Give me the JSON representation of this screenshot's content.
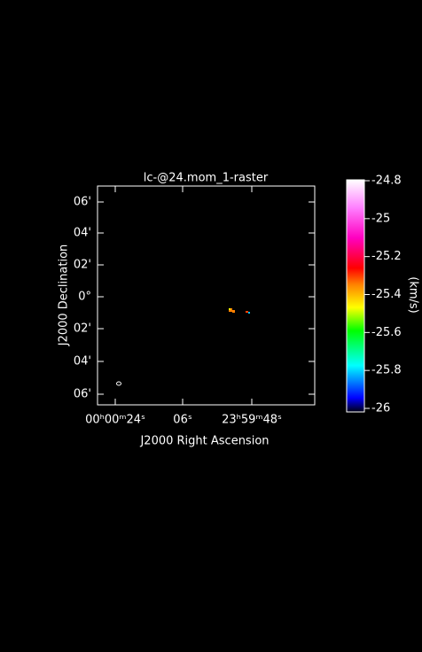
{
  "chart_data": {
    "type": "raster",
    "title": "lc-@24.mom_1-raster",
    "x_label": "J2000 Right Ascension",
    "y_label": "J2000 Declination",
    "x_tick_labels": [
      "00ʰ00ᵐ24ˢ",
      "06ˢ",
      "23ʰ59ᵐ48ˢ"
    ],
    "y_tick_labels": [
      "06'",
      "04'",
      "02'",
      "0°",
      "02'",
      "04'",
      "06'"
    ],
    "colorbar": {
      "label": "(km/s)",
      "lim": [
        -26,
        -24.8
      ],
      "ticks": [
        -24.8,
        -25,
        -25.2,
        -25.4,
        -25.6,
        -25.8,
        -26
      ]
    }
  }
}
